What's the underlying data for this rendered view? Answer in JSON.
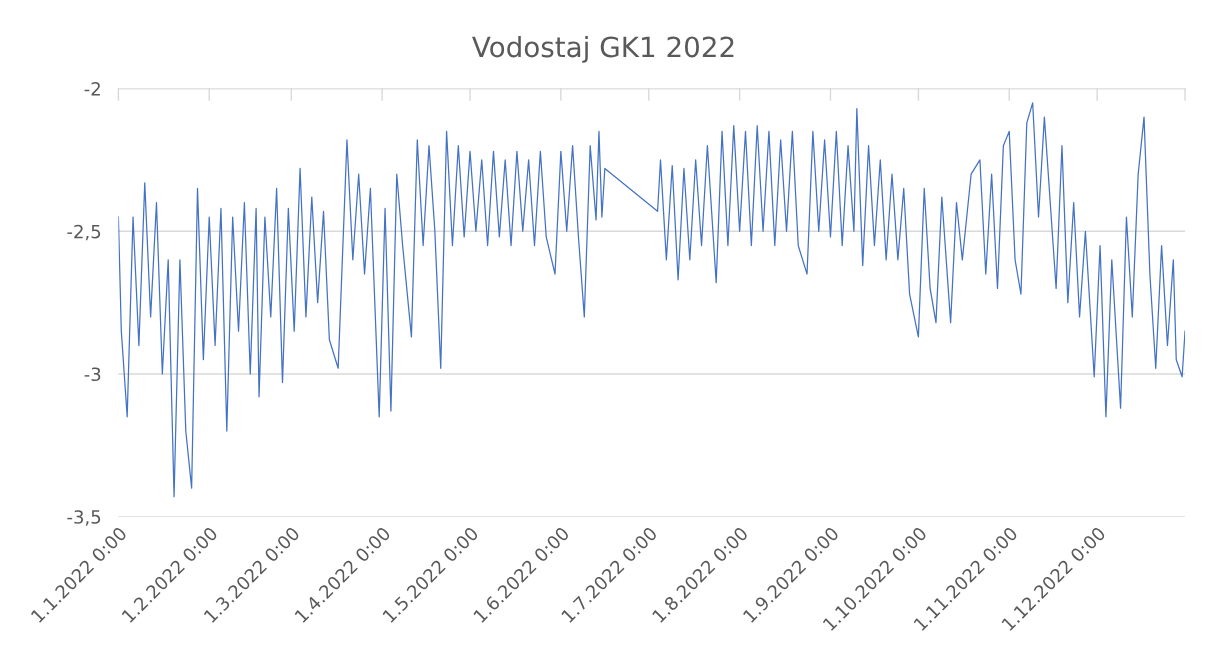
{
  "chart_data": {
    "type": "line",
    "title": "Vodostaj GK1 2022",
    "x": [
      "2022-01-01",
      "2022-01-02",
      "2022-01-04",
      "2022-01-06",
      "2022-01-08",
      "2022-01-10",
      "2022-01-12",
      "2022-01-14",
      "2022-01-16",
      "2022-01-18",
      "2022-01-20",
      "2022-01-22",
      "2022-01-24",
      "2022-01-26",
      "2022-01-28",
      "2022-01-30",
      "2022-02-01",
      "2022-02-03",
      "2022-02-05",
      "2022-02-07",
      "2022-02-09",
      "2022-02-11",
      "2022-02-13",
      "2022-02-15",
      "2022-02-17",
      "2022-02-18",
      "2022-02-20",
      "2022-02-22",
      "2022-02-24",
      "2022-02-26",
      "2022-02-28",
      "2022-03-02",
      "2022-03-04",
      "2022-03-06",
      "2022-03-08",
      "2022-03-10",
      "2022-03-12",
      "2022-03-14",
      "2022-03-17",
      "2022-03-20",
      "2022-03-22",
      "2022-03-24",
      "2022-03-26",
      "2022-03-28",
      "2022-03-31",
      "2022-04-02",
      "2022-04-04",
      "2022-04-06",
      "2022-04-08",
      "2022-04-11",
      "2022-04-13",
      "2022-04-15",
      "2022-04-17",
      "2022-04-19",
      "2022-04-21",
      "2022-04-23",
      "2022-04-25",
      "2022-04-27",
      "2022-04-29",
      "2022-05-01",
      "2022-05-03",
      "2022-05-05",
      "2022-05-07",
      "2022-05-09",
      "2022-05-11",
      "2022-05-13",
      "2022-05-15",
      "2022-05-17",
      "2022-05-19",
      "2022-05-21",
      "2022-05-23",
      "2022-05-25",
      "2022-05-27",
      "2022-05-30",
      "2022-06-01",
      "2022-06-03",
      "2022-06-05",
      "2022-06-07",
      "2022-06-09",
      "2022-06-11",
      "2022-06-13",
      "2022-06-14",
      "2022-06-15",
      "2022-06-16",
      "2022-07-04",
      "2022-07-05",
      "2022-07-07",
      "2022-07-09",
      "2022-07-11",
      "2022-07-13",
      "2022-07-15",
      "2022-07-17",
      "2022-07-19",
      "2022-07-21",
      "2022-07-24",
      "2022-07-26",
      "2022-07-28",
      "2022-07-30",
      "2022-08-01",
      "2022-08-03",
      "2022-08-05",
      "2022-08-07",
      "2022-08-09",
      "2022-08-11",
      "2022-08-13",
      "2022-08-15",
      "2022-08-17",
      "2022-08-19",
      "2022-08-21",
      "2022-08-24",
      "2022-08-26",
      "2022-08-28",
      "2022-08-30",
      "2022-09-01",
      "2022-09-03",
      "2022-09-05",
      "2022-09-07",
      "2022-09-09",
      "2022-09-10",
      "2022-09-12",
      "2022-09-14",
      "2022-09-16",
      "2022-09-18",
      "2022-09-20",
      "2022-09-22",
      "2022-09-24",
      "2022-09-26",
      "2022-09-28",
      "2022-10-01",
      "2022-10-03",
      "2022-10-05",
      "2022-10-07",
      "2022-10-09",
      "2022-10-12",
      "2022-10-14",
      "2022-10-16",
      "2022-10-19",
      "2022-10-22",
      "2022-10-24",
      "2022-10-26",
      "2022-10-28",
      "2022-10-30",
      "2022-11-01",
      "2022-11-03",
      "2022-11-05",
      "2022-11-07",
      "2022-11-09",
      "2022-11-11",
      "2022-11-13",
      "2022-11-15",
      "2022-11-17",
      "2022-11-19",
      "2022-11-21",
      "2022-11-23",
      "2022-11-25",
      "2022-11-27",
      "2022-11-30",
      "2022-12-02",
      "2022-12-04",
      "2022-12-06",
      "2022-12-09",
      "2022-12-11",
      "2022-12-13",
      "2022-12-15",
      "2022-12-17",
      "2022-12-19",
      "2022-12-21",
      "2022-12-23",
      "2022-12-25",
      "2022-12-27",
      "2022-12-28",
      "2022-12-30",
      "2022-12-31"
    ],
    "series": [
      {
        "color": "#4472c4",
        "values": [
          -2.45,
          -2.85,
          -3.15,
          -2.45,
          -2.9,
          -2.33,
          -2.8,
          -2.4,
          -3.0,
          -2.6,
          -3.43,
          -2.6,
          -3.2,
          -3.4,
          -2.35,
          -2.95,
          -2.45,
          -2.9,
          -2.42,
          -3.2,
          -2.45,
          -2.85,
          -2.4,
          -3.0,
          -2.42,
          -3.08,
          -2.45,
          -2.8,
          -2.35,
          -3.03,
          -2.42,
          -2.85,
          -2.28,
          -2.8,
          -2.38,
          -2.75,
          -2.43,
          -2.88,
          -2.98,
          -2.18,
          -2.6,
          -2.3,
          -2.65,
          -2.35,
          -3.15,
          -2.42,
          -3.13,
          -2.3,
          -2.55,
          -2.87,
          -2.18,
          -2.55,
          -2.2,
          -2.5,
          -2.98,
          -2.15,
          -2.55,
          -2.2,
          -2.52,
          -2.22,
          -2.5,
          -2.25,
          -2.55,
          -2.22,
          -2.52,
          -2.25,
          -2.55,
          -2.22,
          -2.5,
          -2.25,
          -2.55,
          -2.22,
          -2.52,
          -2.65,
          -2.22,
          -2.5,
          -2.2,
          -2.52,
          -2.8,
          -2.2,
          -2.46,
          -2.15,
          -2.45,
          -2.28,
          -2.43,
          -2.25,
          -2.6,
          -2.27,
          -2.67,
          -2.28,
          -2.6,
          -2.25,
          -2.55,
          -2.2,
          -2.68,
          -2.15,
          -2.55,
          -2.13,
          -2.5,
          -2.15,
          -2.55,
          -2.13,
          -2.5,
          -2.15,
          -2.55,
          -2.18,
          -2.5,
          -2.15,
          -2.55,
          -2.65,
          -2.15,
          -2.5,
          -2.18,
          -2.52,
          -2.15,
          -2.55,
          -2.2,
          -2.5,
          -2.07,
          -2.62,
          -2.2,
          -2.55,
          -2.25,
          -2.6,
          -2.3,
          -2.6,
          -2.35,
          -2.72,
          -2.87,
          -2.35,
          -2.7,
          -2.82,
          -2.38,
          -2.82,
          -2.4,
          -2.6,
          -2.3,
          -2.25,
          -2.65,
          -2.3,
          -2.7,
          -2.2,
          -2.15,
          -2.6,
          -2.72,
          -2.12,
          -2.05,
          -2.45,
          -2.1,
          -2.4,
          -2.7,
          -2.2,
          -2.75,
          -2.4,
          -2.8,
          -2.5,
          -3.01,
          -2.55,
          -3.15,
          -2.6,
          -3.12,
          -2.45,
          -2.8,
          -2.3,
          -2.1,
          -2.65,
          -2.98,
          -2.55,
          -2.9,
          -2.6,
          -2.95,
          -3.01,
          -2.85
        ]
      }
    ],
    "xlim": [
      "2022-01-01",
      "2022-12-31"
    ],
    "xticks": [
      {
        "value": "2022-01-01",
        "label": "1.1.2022 0:00"
      },
      {
        "value": "2022-02-01",
        "label": "1.2.2022 0:00"
      },
      {
        "value": "2022-03-01",
        "label": "1.3.2022 0:00"
      },
      {
        "value": "2022-04-01",
        "label": "1.4.2022 0:00"
      },
      {
        "value": "2022-05-01",
        "label": "1.5.2022 0:00"
      },
      {
        "value": "2022-06-01",
        "label": "1.6.2022 0:00"
      },
      {
        "value": "2022-07-01",
        "label": "1.7.2022 0:00"
      },
      {
        "value": "2022-08-01",
        "label": "1.8.2022 0:00"
      },
      {
        "value": "2022-09-01",
        "label": "1.9.2022 0:00"
      },
      {
        "value": "2022-10-01",
        "label": "1.10.2022 0:00"
      },
      {
        "value": "2022-11-01",
        "label": "1.11.2022 0:00"
      },
      {
        "value": "2022-12-01",
        "label": "1.12.2022 0:00"
      }
    ],
    "ylim": [
      -3.5,
      -2
    ],
    "yticks": [
      {
        "value": -3.5,
        "label": "-3,5"
      },
      {
        "value": -3,
        "label": "-3"
      },
      {
        "value": -2.5,
        "label": "-2,5"
      },
      {
        "value": -2,
        "label": "-2"
      }
    ],
    "grid": "y",
    "legend": false
  }
}
